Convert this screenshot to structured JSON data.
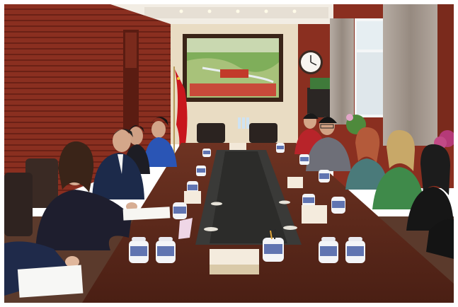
{
  "photo": {
    "scene": "meeting-room",
    "colors": {
      "wall_wood": "#8a2f20",
      "wall_wood_dark": "#6b2116",
      "back_wall": "#e9dcc3",
      "ceiling": "#f2ede4",
      "table": "#5a2a1c",
      "table_center": "#3a3a38",
      "curtain": "#a59a92",
      "flag_red": "#c8161d",
      "flag_gold": "#f4d03f",
      "mug_white": "#f3f4f7",
      "mug_blue": "#2f4a9a"
    }
  }
}
